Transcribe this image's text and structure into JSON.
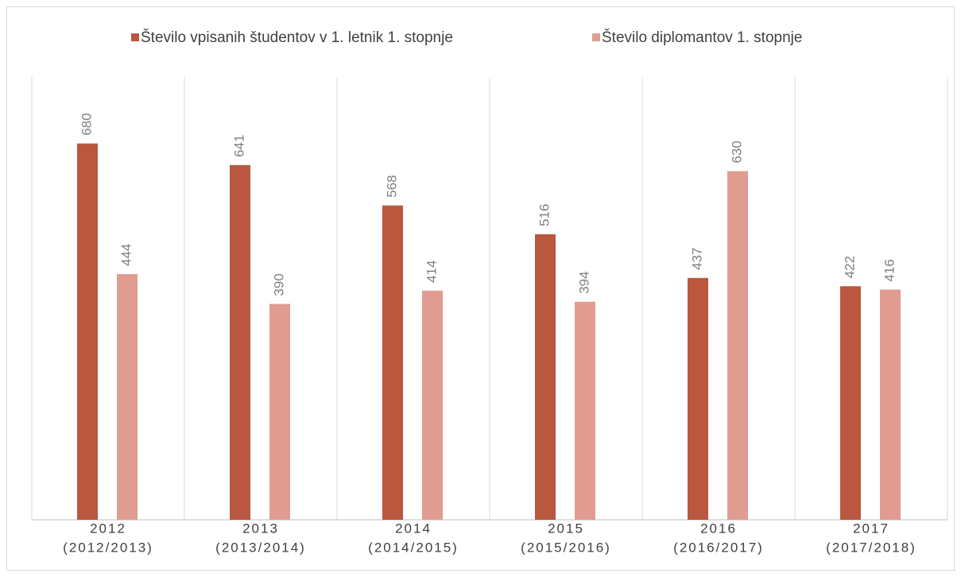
{
  "chart_data": {
    "type": "bar",
    "categories": [
      [
        "2012",
        "(2012/2013)"
      ],
      [
        "2013",
        "(2013/2014)"
      ],
      [
        "2014",
        "(2014/2015)"
      ],
      [
        "2015",
        "(2015/2016)"
      ],
      [
        "2016",
        "(2016/2017)"
      ],
      [
        "2017",
        "(2017/2018)"
      ]
    ],
    "series": [
      {
        "name": "Število vpisanih študentov v 1. letnik 1. stopnje",
        "color": "#b9573f",
        "values": [
          680,
          641,
          568,
          516,
          437,
          422
        ]
      },
      {
        "name": "Število diplomantov 1. stopnje",
        "color": "#e09c91",
        "values": [
          444,
          390,
          414,
          394,
          630,
          416
        ]
      }
    ],
    "ylim": [
      0,
      800
    ],
    "legend": "top"
  }
}
